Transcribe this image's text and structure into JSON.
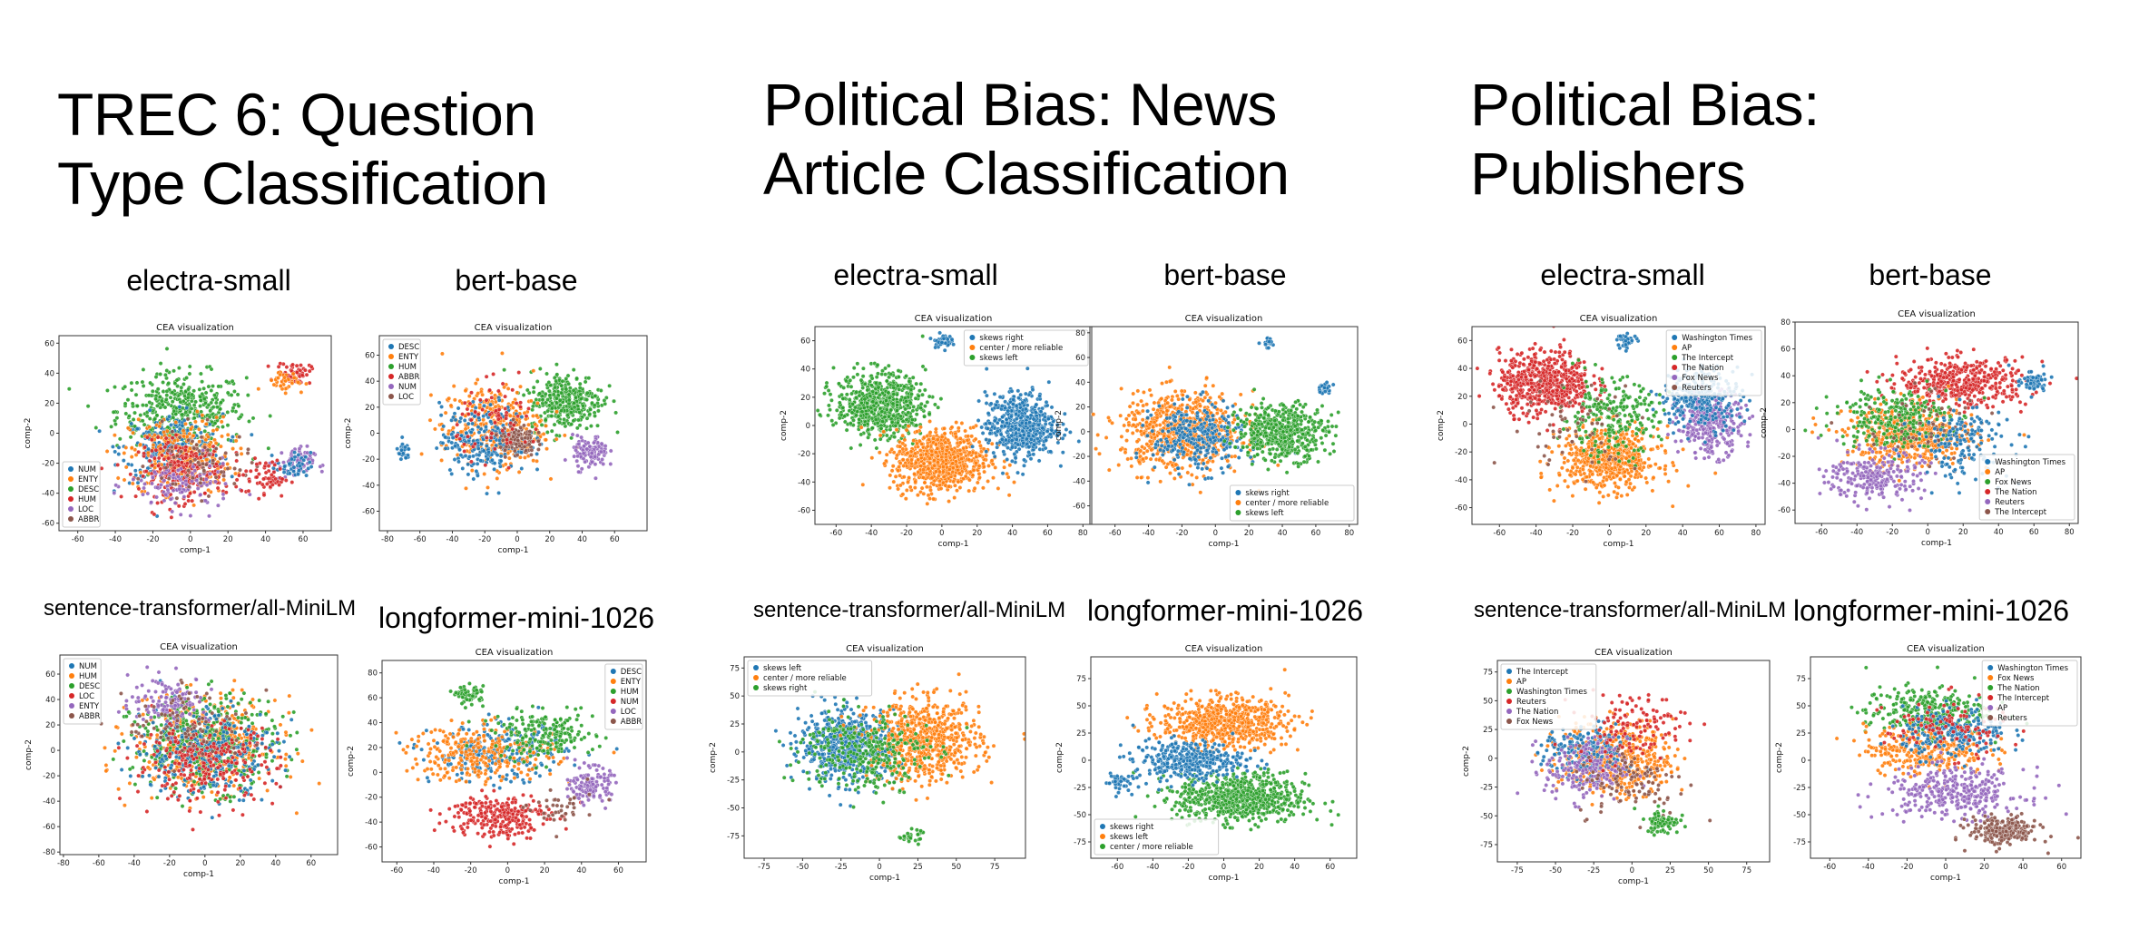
{
  "sections": [
    {
      "title": "TREC 6: Question\nType Classification"
    },
    {
      "title": "Political Bias: News\nArticle Classification"
    },
    {
      "title": "Political Bias:\nPublishers"
    }
  ],
  "models": [
    "electra-small",
    "bert-base",
    "sentence-transformer/all-MiniLM",
    "longformer-mini-1026"
  ],
  "colors": {
    "blue": "#1f77b4",
    "orange": "#ff7f0e",
    "green": "#2ca02c",
    "red": "#d62728",
    "purple": "#9467bd",
    "brown": "#8c564b"
  },
  "chart_data": [
    {
      "type": "scatter",
      "section": 0,
      "model": "electra-small",
      "title": "CEA visualization",
      "xlabel": "comp-1",
      "ylabel": "comp-2",
      "xlim": [
        -70,
        75
      ],
      "ylim": [
        -65,
        65
      ],
      "xticks": [
        -60,
        -40,
        -20,
        0,
        20,
        40,
        60
      ],
      "yticks": [
        -60,
        -40,
        -20,
        0,
        20,
        40,
        60
      ],
      "legend_pos": "lower-left",
      "series": [
        {
          "name": "NUM",
          "color": "#1f77b4"
        },
        {
          "name": "ENTY",
          "color": "#ff7f0e"
        },
        {
          "name": "DESC",
          "color": "#2ca02c"
        },
        {
          "name": "HUM",
          "color": "#d62728"
        },
        {
          "name": "LOC",
          "color": "#9467bd"
        },
        {
          "name": "ABBR",
          "color": "#8c564b"
        }
      ]
    },
    {
      "type": "scatter",
      "section": 0,
      "model": "bert-base",
      "title": "CEA visualization",
      "xlabel": "comp-1",
      "ylabel": "comp-2",
      "xlim": [
        -85,
        80
      ],
      "ylim": [
        -75,
        75
      ],
      "xticks": [
        -80,
        -60,
        -40,
        -20,
        0,
        20,
        40,
        60
      ],
      "yticks": [
        -60,
        -40,
        -20,
        0,
        20,
        40,
        60
      ],
      "legend_pos": "upper-left",
      "series": [
        {
          "name": "DESC",
          "color": "#1f77b4"
        },
        {
          "name": "ENTY",
          "color": "#ff7f0e"
        },
        {
          "name": "HUM",
          "color": "#2ca02c"
        },
        {
          "name": "ABBR",
          "color": "#d62728"
        },
        {
          "name": "NUM",
          "color": "#9467bd"
        },
        {
          "name": "LOC",
          "color": "#8c564b"
        }
      ]
    },
    {
      "type": "scatter",
      "section": 0,
      "model": "sentence-transformer/all-MiniLM",
      "title": "CEA visualization",
      "xlabel": "comp-1",
      "ylabel": "comp-2",
      "xlim": [
        -82,
        75
      ],
      "ylim": [
        -82,
        75
      ],
      "xticks": [
        -80,
        -60,
        -40,
        -20,
        0,
        20,
        40,
        60
      ],
      "yticks": [
        -80,
        -60,
        -40,
        -20,
        0,
        20,
        40,
        60
      ],
      "legend_pos": "upper-left",
      "series": [
        {
          "name": "NUM",
          "color": "#1f77b4"
        },
        {
          "name": "HUM",
          "color": "#ff7f0e"
        },
        {
          "name": "DESC",
          "color": "#2ca02c"
        },
        {
          "name": "LOC",
          "color": "#d62728"
        },
        {
          "name": "ENTY",
          "color": "#9467bd"
        },
        {
          "name": "ABBR",
          "color": "#8c564b"
        }
      ]
    },
    {
      "type": "scatter",
      "section": 0,
      "model": "longformer-mini-1026",
      "title": "CEA visualization",
      "xlabel": "comp-1",
      "ylabel": "comp-2",
      "xlim": [
        -68,
        75
      ],
      "ylim": [
        -72,
        90
      ],
      "xticks": [
        -60,
        -40,
        -20,
        0,
        20,
        40,
        60
      ],
      "yticks": [
        -60,
        -40,
        -20,
        0,
        20,
        40,
        60,
        80
      ],
      "legend_pos": "upper-right",
      "series": [
        {
          "name": "DESC",
          "color": "#1f77b4"
        },
        {
          "name": "ENTY",
          "color": "#ff7f0e"
        },
        {
          "name": "HUM",
          "color": "#2ca02c"
        },
        {
          "name": "NUM",
          "color": "#d62728"
        },
        {
          "name": "LOC",
          "color": "#9467bd"
        },
        {
          "name": "ABBR",
          "color": "#8c564b"
        }
      ]
    },
    {
      "type": "scatter",
      "section": 1,
      "model": "electra-small",
      "title": "CEA visualization",
      "xlabel": "comp-1",
      "ylabel": "comp-2",
      "xlim": [
        -72,
        85
      ],
      "ylim": [
        -70,
        70
      ],
      "xticks": [
        -60,
        -40,
        -20,
        0,
        20,
        40,
        60,
        80
      ],
      "yticks": [
        -60,
        -40,
        -20,
        0,
        20,
        40,
        60
      ],
      "legend_pos": "upper-right",
      "series": [
        {
          "name": "skews right",
          "color": "#1f77b4"
        },
        {
          "name": "center / more reliable",
          "color": "#ff7f0e"
        },
        {
          "name": "skews left",
          "color": "#2ca02c"
        }
      ]
    },
    {
      "type": "scatter",
      "section": 1,
      "model": "bert-base",
      "title": "CEA visualization",
      "xlabel": "comp-1",
      "ylabel": "comp-2",
      "xlim": [
        -75,
        85
      ],
      "ylim": [
        -75,
        85
      ],
      "xticks": [
        -60,
        -40,
        -20,
        0,
        20,
        40,
        60,
        80
      ],
      "yticks": [
        -60,
        -40,
        -20,
        0,
        20,
        40,
        60,
        80
      ],
      "legend_pos": "lower-right",
      "series": [
        {
          "name": "skews right",
          "color": "#1f77b4"
        },
        {
          "name": "center / more reliable",
          "color": "#ff7f0e"
        },
        {
          "name": "skews left",
          "color": "#2ca02c"
        }
      ]
    },
    {
      "type": "scatter",
      "section": 1,
      "model": "sentence-transformer/all-MiniLM",
      "title": "CEA visualization",
      "xlabel": "comp-1",
      "ylabel": "comp-2",
      "xlim": [
        -88,
        95
      ],
      "ylim": [
        -95,
        85
      ],
      "xticks": [
        -75,
        -50,
        -25,
        0,
        25,
        50,
        75
      ],
      "yticks": [
        -75,
        -50,
        -25,
        0,
        25,
        50,
        75
      ],
      "legend_pos": "upper-left",
      "series": [
        {
          "name": "skews left",
          "color": "#1f77b4"
        },
        {
          "name": "center / more reliable",
          "color": "#ff7f0e"
        },
        {
          "name": "skews right",
          "color": "#2ca02c"
        }
      ]
    },
    {
      "type": "scatter",
      "section": 1,
      "model": "longformer-mini-1026",
      "title": "CEA visualization",
      "xlabel": "comp-1",
      "ylabel": "comp-2",
      "xlim": [
        -75,
        75
      ],
      "ylim": [
        -90,
        95
      ],
      "xticks": [
        -60,
        -40,
        -20,
        0,
        20,
        40,
        60
      ],
      "yticks": [
        -75,
        -50,
        -25,
        0,
        25,
        50,
        75
      ],
      "legend_pos": "lower-left",
      "series": [
        {
          "name": "skews right",
          "color": "#1f77b4"
        },
        {
          "name": "skews left",
          "color": "#ff7f0e"
        },
        {
          "name": "center / more reliable",
          "color": "#2ca02c"
        }
      ]
    },
    {
      "type": "scatter",
      "section": 2,
      "model": "electra-small",
      "title": "CEA visualization",
      "xlabel": "comp-1",
      "ylabel": "comp-2",
      "xlim": [
        -75,
        85
      ],
      "ylim": [
        -72,
        70
      ],
      "xticks": [
        -60,
        -40,
        -20,
        0,
        20,
        40,
        60,
        80
      ],
      "yticks": [
        -60,
        -40,
        -20,
        0,
        20,
        40,
        60
      ],
      "legend_pos": "upper-right",
      "series": [
        {
          "name": "Washington Times",
          "color": "#1f77b4"
        },
        {
          "name": "AP",
          "color": "#ff7f0e"
        },
        {
          "name": "The Intercept",
          "color": "#2ca02c"
        },
        {
          "name": "The Nation",
          "color": "#d62728"
        },
        {
          "name": "Fox News",
          "color": "#9467bd"
        },
        {
          "name": "Reuters",
          "color": "#8c564b"
        }
      ]
    },
    {
      "type": "scatter",
      "section": 2,
      "model": "bert-base",
      "title": "CEA visualization",
      "xlabel": "comp-1",
      "ylabel": "comp-2",
      "xlim": [
        -75,
        85
      ],
      "ylim": [
        -70,
        80
      ],
      "xticks": [
        -60,
        -40,
        -20,
        0,
        20,
        40,
        60,
        80
      ],
      "yticks": [
        -60,
        -40,
        -20,
        0,
        20,
        40,
        60,
        80
      ],
      "legend_pos": "lower-right",
      "series": [
        {
          "name": "Washington Times",
          "color": "#1f77b4"
        },
        {
          "name": "AP",
          "color": "#ff7f0e"
        },
        {
          "name": "Fox News",
          "color": "#2ca02c"
        },
        {
          "name": "The Nation",
          "color": "#d62728"
        },
        {
          "name": "Reuters",
          "color": "#9467bd"
        },
        {
          "name": "The Intercept",
          "color": "#8c564b"
        }
      ]
    },
    {
      "type": "scatter",
      "section": 2,
      "model": "sentence-transformer/all-MiniLM",
      "title": "CEA visualization",
      "xlabel": "comp-1",
      "ylabel": "comp-2",
      "xlim": [
        -88,
        90
      ],
      "ylim": [
        -90,
        85
      ],
      "xticks": [
        -75,
        -50,
        -25,
        0,
        25,
        50,
        75
      ],
      "yticks": [
        -75,
        -50,
        -25,
        0,
        25,
        50,
        75
      ],
      "legend_pos": "upper-left",
      "series": [
        {
          "name": "The Intercept",
          "color": "#1f77b4"
        },
        {
          "name": "AP",
          "color": "#ff7f0e"
        },
        {
          "name": "Washington Times",
          "color": "#2ca02c"
        },
        {
          "name": "Reuters",
          "color": "#d62728"
        },
        {
          "name": "The Nation",
          "color": "#9467bd"
        },
        {
          "name": "Fox News",
          "color": "#8c564b"
        }
      ]
    },
    {
      "type": "scatter",
      "section": 2,
      "model": "longformer-mini-1026",
      "title": "CEA visualization",
      "xlabel": "comp-1",
      "ylabel": "comp-2",
      "xlim": [
        -70,
        70
      ],
      "ylim": [
        -90,
        95
      ],
      "xticks": [
        -60,
        -40,
        -20,
        0,
        20,
        40,
        60
      ],
      "yticks": [
        -75,
        -50,
        -25,
        0,
        25,
        50,
        75
      ],
      "legend_pos": "upper-right",
      "series": [
        {
          "name": "Washington Times",
          "color": "#1f77b4"
        },
        {
          "name": "Fox News",
          "color": "#ff7f0e"
        },
        {
          "name": "The Nation",
          "color": "#2ca02c"
        },
        {
          "name": "The Intercept",
          "color": "#d62728"
        },
        {
          "name": "AP",
          "color": "#9467bd"
        },
        {
          "name": "Reuters",
          "color": "#8c564b"
        }
      ]
    }
  ]
}
